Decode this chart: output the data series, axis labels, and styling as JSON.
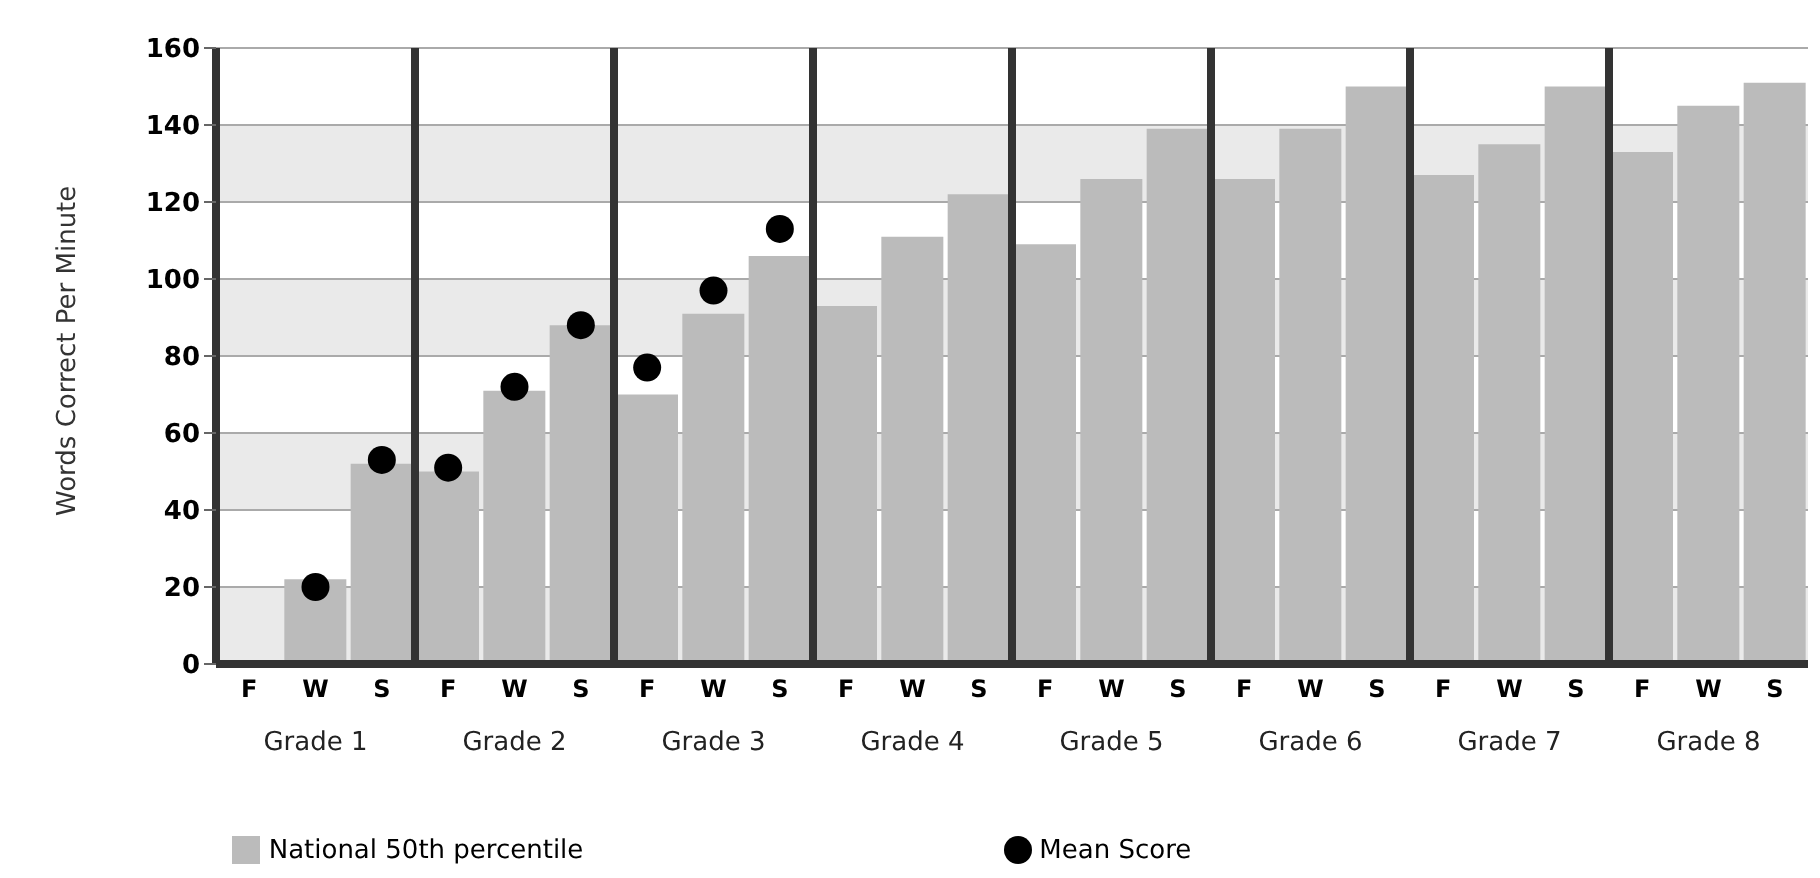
{
  "chart_data": {
    "type": "bar",
    "ylabel": "Words Correct Per Minute",
    "categories": [
      "F",
      "W",
      "S",
      "F",
      "W",
      "S",
      "F",
      "W",
      "S",
      "F",
      "W",
      "S",
      "F",
      "W",
      "S",
      "F",
      "W",
      "S",
      "F",
      "W",
      "S",
      "F",
      "W",
      "S"
    ],
    "annotations": [
      "Grade 1",
      "Grade 2",
      "Grade 3",
      "Grade 4",
      "Grade 5",
      "Grade 6",
      "Grade 7",
      "Grade 8"
    ],
    "series": [
      {
        "name": "National 50th percentile",
        "color": "#bbbbbb",
        "values": [
          null,
          22,
          52,
          50,
          71,
          88,
          70,
          91,
          106,
          93,
          111,
          122,
          109,
          126,
          139,
          126,
          139,
          150,
          127,
          135,
          150,
          133,
          145,
          151
        ]
      },
      {
        "name": "Mean Score",
        "type": "scatter",
        "color": "#000000",
        "values": [
          null,
          20,
          53,
          51,
          72,
          88,
          77,
          97,
          113,
          null,
          null,
          null,
          null,
          null,
          null,
          null,
          null,
          null,
          null,
          null,
          null,
          null,
          null,
          null
        ]
      }
    ],
    "ylim": [
      0,
      160
    ],
    "yticks": [
      0,
      20,
      40,
      60,
      80,
      100,
      120,
      140,
      160
    ],
    "grid": "y",
    "legend": "bottom",
    "marker": "circle"
  }
}
